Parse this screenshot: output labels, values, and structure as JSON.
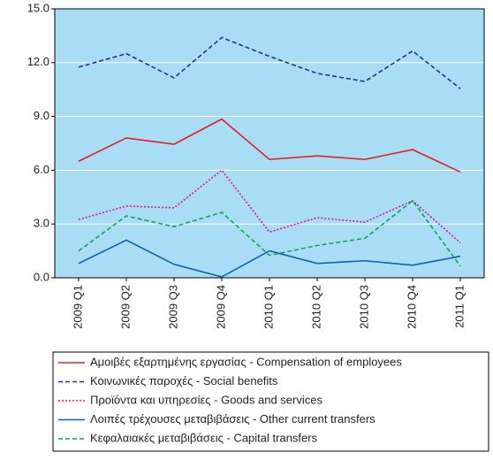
{
  "chart_data": {
    "type": "line",
    "categories": [
      "2009 Q1",
      "2009 Q2",
      "2009 Q3",
      "2009 Q4",
      "2010 Q1",
      "2010 Q2",
      "2010 Q3",
      "2010 Q4",
      "2011 Q1"
    ],
    "series": [
      {
        "name": "Αμοιβές εξαρτημένης εργασίας - Compensation of employees",
        "color": "#e31e24",
        "dash": "solid",
        "values": [
          6.5,
          7.8,
          7.45,
          8.85,
          6.6,
          6.8,
          6.6,
          7.15,
          5.9
        ]
      },
      {
        "name": "Κοινωνικές παροχές - Social benefits",
        "color": "#2b2f8f",
        "dash": "dashed",
        "values": [
          11.75,
          12.5,
          11.15,
          13.4,
          12.35,
          11.4,
          10.95,
          12.65,
          10.55
        ]
      },
      {
        "name": "Προϊόντα και υπηρεσίες - Goods and services",
        "color": "#e0159a",
        "dash": "dotted",
        "values": [
          3.25,
          4.0,
          3.9,
          6.0,
          2.55,
          3.35,
          3.1,
          4.3,
          1.95
        ]
      },
      {
        "name": "Λοιπές τρέχουσες μεταβιβάσεις - Other current transfers",
        "color": "#0a64ad",
        "dash": "solid",
        "values": [
          0.8,
          2.1,
          0.75,
          0.05,
          1.5,
          0.8,
          0.95,
          0.7,
          1.2
        ]
      },
      {
        "name": "Κεφαλαιακές μεταβιβάσεις - Capital transfers",
        "color": "#0da84a",
        "dash": "dashed",
        "values": [
          1.5,
          3.45,
          2.85,
          3.65,
          1.25,
          1.8,
          2.2,
          4.3,
          0.65
        ]
      }
    ],
    "ylim": [
      0,
      15
    ],
    "yticks": [
      {
        "value": 0,
        "label": "0.0"
      },
      {
        "value": 3,
        "label": "3.0"
      },
      {
        "value": 6,
        "label": "6.0"
      },
      {
        "value": 9,
        "label": "9.0"
      },
      {
        "value": 12,
        "label": "12.0"
      },
      {
        "value": 15,
        "label": "15.0"
      }
    ],
    "grid": true,
    "background": "#a9dcf5",
    "legend": "bottom"
  }
}
